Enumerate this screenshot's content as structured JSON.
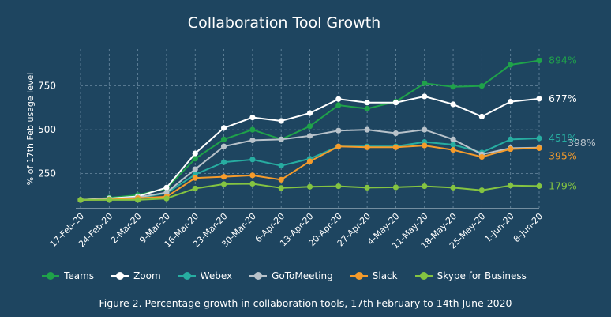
{
  "chart_data": {
    "type": "line",
    "title": "Collaboration Tool Growth",
    "ylabel": "% of 17th Feb usage level",
    "xlabel": "",
    "ylim": [
      50,
      960
    ],
    "yticks": [
      250,
      500,
      750
    ],
    "grid": true,
    "legend_position": "bottom",
    "categories": [
      "17-Feb-20",
      "24-Feb-20",
      "2-Mar-20",
      "9-Mar-20",
      "16-Mar-20",
      "23-Mar-20",
      "30-Mar-20",
      "6-Apr-20",
      "13-Apr-20",
      "20-Apr-20",
      "27-Apr-20",
      "4-May-20",
      "11-May-20",
      "18-May-20",
      "25-May-20",
      "1-Jun-20",
      "8-Jun-20"
    ],
    "series": [
      {
        "name": "Teams",
        "color": "#1fa24a",
        "end_label": "894%",
        "values": [
          100,
          112,
          128,
          165,
          335,
          445,
          500,
          445,
          520,
          640,
          620,
          660,
          765,
          745,
          750,
          870,
          894
        ]
      },
      {
        "name": "Zoom",
        "color": "#ffffff",
        "end_label": "677%",
        "values": [
          100,
          108,
          120,
          170,
          365,
          510,
          570,
          550,
          595,
          675,
          655,
          655,
          690,
          645,
          575,
          660,
          677
        ]
      },
      {
        "name": "Webex",
        "color": "#27ada1",
        "end_label": "451%",
        "values": [
          100,
          105,
          112,
          138,
          245,
          315,
          330,
          295,
          335,
          405,
          405,
          405,
          430,
          415,
          370,
          445,
          451
        ]
      },
      {
        "name": "GoToMeeting",
        "color": "#b8c2ca",
        "end_label": "398%",
        "values": [
          100,
          105,
          115,
          142,
          275,
          405,
          440,
          445,
          465,
          495,
          500,
          480,
          500,
          445,
          360,
          395,
          398
        ]
      },
      {
        "name": "Slack",
        "color": "#f59b2b",
        "end_label": "395%",
        "values": [
          100,
          102,
          110,
          118,
          225,
          232,
          240,
          215,
          320,
          405,
          400,
          400,
          410,
          385,
          345,
          390,
          395
        ]
      },
      {
        "name": "Skype for Business",
        "color": "#84c441",
        "end_label": "179%",
        "values": [
          100,
          100,
          100,
          108,
          165,
          190,
          192,
          168,
          175,
          178,
          170,
          172,
          178,
          170,
          155,
          182,
          179
        ]
      }
    ]
  },
  "caption": "Figure 2. Percentage growth in collaboration tools,  17th February to 14th June 2020"
}
